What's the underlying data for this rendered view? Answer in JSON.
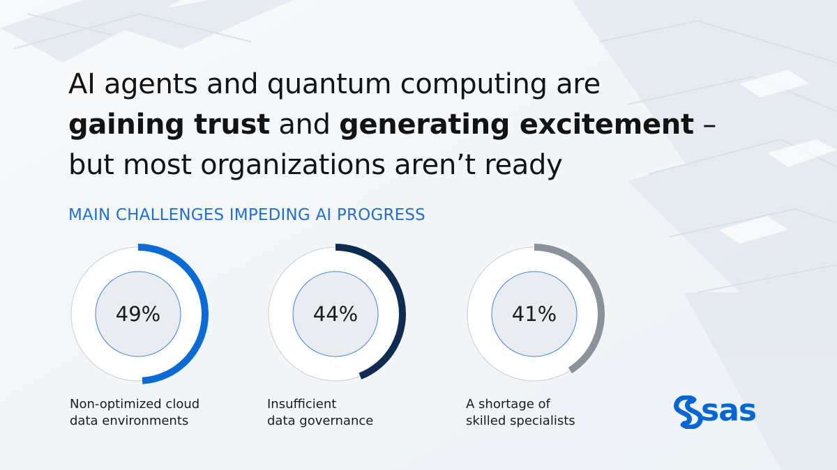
{
  "headline": {
    "line1": "AI agents and quantum computing are",
    "line2_bold1": "gaining trust",
    "line2_mid": " and ",
    "line2_bold2": "generating excitement",
    "line2_end": " –",
    "line3": "but most organizations aren’t ready"
  },
  "colors": {
    "bright_blue": "#0b6ad6",
    "navy": "#0e2b52",
    "gray": "#8a929c",
    "title_blue": "#1f6fd4",
    "inner_fill": "#e9ecf1",
    "inner_stroke": "#3a83dd",
    "outer_ring": "#c9ced5"
  },
  "chart_data": {
    "type": "donut",
    "title": "MAIN CHALLENGES IMPEDING AI PROGRESS",
    "unit": "%",
    "items": [
      {
        "value": 49,
        "value_label": "49%",
        "label_lines": [
          "Non-optimized cloud",
          "data environments"
        ],
        "color": "#0b6ad6"
      },
      {
        "value": 44,
        "value_label": "44%",
        "label_lines": [
          "Insufficient",
          "data governance"
        ],
        "color": "#0e2b52"
      },
      {
        "value": 41,
        "value_label": "41%",
        "label_lines": [
          "A shortage of",
          "skilled specialists"
        ],
        "color": "#8a929c"
      }
    ]
  },
  "logo": {
    "text": "sas",
    "icon": "sas-logo-s-icon"
  }
}
